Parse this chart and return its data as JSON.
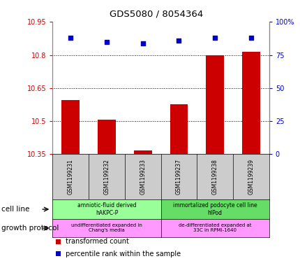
{
  "title": "GDS5080 / 8054364",
  "samples": [
    "GSM1199231",
    "GSM1199232",
    "GSM1199233",
    "GSM1199237",
    "GSM1199238",
    "GSM1199239"
  ],
  "bar_values": [
    10.595,
    10.505,
    10.365,
    10.575,
    10.8,
    10.815
  ],
  "percentile_values": [
    88,
    85,
    84,
    86,
    88,
    88
  ],
  "ylim_left": [
    10.35,
    10.95
  ],
  "ylim_right": [
    0,
    100
  ],
  "yticks_left": [
    10.35,
    10.5,
    10.65,
    10.8,
    10.95
  ],
  "yticks_right": [
    0,
    25,
    50,
    75,
    100
  ],
  "ytick_labels_left": [
    "10.35",
    "10.5",
    "10.65",
    "10.8",
    "10.95"
  ],
  "ytick_labels_right": [
    "0",
    "25",
    "50",
    "75",
    "100%"
  ],
  "bar_color": "#CC0000",
  "dot_color": "#0000CC",
  "cell_line_groups": [
    {
      "label": "amniotic-fluid derived\nhAKPC-P",
      "start": 0,
      "end": 3,
      "color": "#99FF99"
    },
    {
      "label": "immortalized podocyte cell line\nhIPod",
      "start": 3,
      "end": 6,
      "color": "#66DD66"
    }
  ],
  "growth_protocol_groups": [
    {
      "label": "undifferentiated expanded in\nChang's media",
      "start": 0,
      "end": 3,
      "color": "#FF99FF"
    },
    {
      "label": "de-differentiated expanded at\n33C in RPMI-1640",
      "start": 3,
      "end": 6,
      "color": "#FF99FF"
    }
  ],
  "legend_items": [
    {
      "color": "#CC0000",
      "label": " transformed count"
    },
    {
      "color": "#0000CC",
      "label": " percentile rank within the sample"
    }
  ],
  "cell_line_label": "cell line",
  "growth_protocol_label": "growth protocol",
  "bar_color_hex": "#CC0000",
  "dot_color_hex": "#0000CC",
  "grid_color": "#000000",
  "tick_color_left": "#CC0000",
  "tick_color_right": "#0000CC",
  "sample_box_color": "#CCCCCC",
  "spine_color": "#888888"
}
